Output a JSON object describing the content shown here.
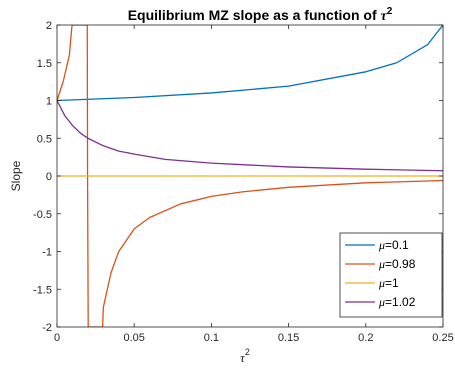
{
  "chart_data": {
    "type": "line",
    "title": "Equilibrium MZ slope as a function of τ²",
    "title_main": "Equilibrium MZ slope as a function of ",
    "title_symbol": "τ",
    "title_sup": "2",
    "xlabel_symbol": "τ",
    "xlabel_sup": "2",
    "ylabel": "Slope",
    "xlim": [
      0,
      0.25
    ],
    "ylim": [
      -2,
      2
    ],
    "xticks": [
      0,
      0.05,
      0.1,
      0.15,
      0.2,
      0.25
    ],
    "xtick_labels": [
      "0",
      "0.05",
      "0.1",
      "0.15",
      "0.2",
      "0.25"
    ],
    "yticks": [
      -2,
      -1.5,
      -1,
      -0.5,
      0,
      0.5,
      1,
      1.5,
      2
    ],
    "ytick_labels": [
      "-2",
      "-1.5",
      "-1",
      "-0.5",
      "0",
      "0.5",
      "1",
      "1.5",
      "2"
    ],
    "grid": false,
    "legend_position": "bottom-right",
    "series": [
      {
        "name": "μ=0.1",
        "name_symbol": "μ",
        "name_value": "=0.1",
        "color": "#0072BD",
        "x": [
          0,
          0.05,
          0.1,
          0.15,
          0.2,
          0.22,
          0.24,
          0.25
        ],
        "y": [
          1.0,
          1.04,
          1.1,
          1.19,
          1.38,
          1.5,
          1.74,
          2.0
        ]
      },
      {
        "name": "μ=0.98",
        "name_symbol": "μ",
        "name_value": "=0.98",
        "color": "#D95319",
        "x": [
          0,
          0.004,
          0.008,
          0.0095,
          0.0098,
          0.0196,
          0.0198,
          0.0202,
          0.0295,
          0.0296,
          0.03,
          0.035,
          0.04,
          0.05,
          0.06,
          0.08,
          0.1,
          0.12,
          0.15,
          0.2,
          0.25
        ],
        "y": [
          1.0,
          1.25,
          1.6,
          1.95,
          2.0,
          2.0,
          0.0,
          -2.0,
          -2.0,
          -1.98,
          -1.74,
          -1.28,
          -1.0,
          -0.7,
          -0.55,
          -0.37,
          -0.27,
          -0.21,
          -0.15,
          -0.09,
          -0.06
        ]
      },
      {
        "name": "μ=1",
        "name_symbol": "μ",
        "name_value": "=1",
        "color": "#EDB120",
        "x": [
          0,
          0.25
        ],
        "y": [
          0,
          0
        ]
      },
      {
        "name": "μ=1.02",
        "name_symbol": "μ",
        "name_value": "=1.02",
        "color": "#7E2F8E",
        "x": [
          0,
          0.005,
          0.01,
          0.015,
          0.02,
          0.03,
          0.04,
          0.05,
          0.07,
          0.1,
          0.15,
          0.2,
          0.25
        ],
        "y": [
          1.0,
          0.8,
          0.67,
          0.57,
          0.5,
          0.4,
          0.33,
          0.29,
          0.22,
          0.17,
          0.12,
          0.09,
          0.07
        ]
      }
    ]
  }
}
